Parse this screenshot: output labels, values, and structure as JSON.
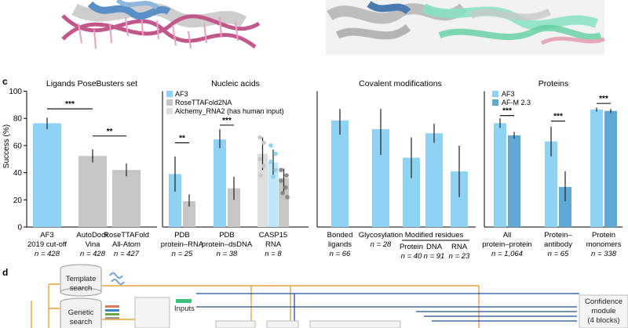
{
  "panel_labels": {
    "c": "c",
    "d": "d"
  },
  "y_axis": {
    "label": "Success (%)",
    "ticks": [
      "0",
      "20",
      "40",
      "60",
      "80",
      "100"
    ]
  },
  "colors": {
    "af3": "#8ed3f4",
    "af3_dark": "#5fa8d3",
    "baseline_gray": "#c6c6c6",
    "alchemy_gray": "#dedede",
    "human_input_light": "#bfe6f8",
    "arrow_orange": "#e9a23b",
    "arrow_blue": "#1f4e9a",
    "inputs_green": "#3cc17a",
    "dna_pink": "#c2578c",
    "protein_blue": "#5b8fc7",
    "protein_green": "#87e3c2"
  },
  "chart_data": [
    {
      "type": "bar",
      "title": "Ligands PoseBusters set",
      "ylabel": "Success (%)",
      "ylim": [
        0,
        100
      ],
      "categories": [
        {
          "lines": [
            "AF3",
            "2019 cut-off",
            "n = 428"
          ]
        },
        {
          "lines": [
            "AutoDock",
            "Vina",
            "n = 428"
          ]
        },
        {
          "lines": [
            "RoseTTAFold",
            "All-Atom",
            "n = 427"
          ]
        }
      ],
      "series": [
        {
          "values": [
            76.4,
            52.3,
            42.0
          ],
          "errors": [
            [
              72.0,
              80.5
            ],
            [
              47.5,
              57.2
            ],
            [
              37.3,
              46.8
            ]
          ],
          "colors": [
            "af3",
            "baseline_gray",
            "baseline_gray"
          ]
        }
      ],
      "significance": [
        {
          "label": "***"
        },
        {
          "label": "**"
        }
      ]
    },
    {
      "type": "bar",
      "title": "Nucleic acids",
      "ylabel": "Success (%)",
      "ylim": [
        0,
        100
      ],
      "legend": [
        "AF3",
        "RoseTTAFold2NA",
        "Alchemy_RNA2 (has human input)"
      ],
      "legend_placement": "top-left",
      "categories": [
        {
          "lines": [
            "PDB",
            "protein–RNA",
            "n = 25"
          ]
        },
        {
          "lines": [
            "PDB",
            "protein–dsDNA",
            "n = 38"
          ]
        },
        {
          "lines": [
            "CASP15",
            "RNA",
            "n = 8"
          ]
        }
      ],
      "series": [
        {
          "name": "AF3",
          "values": [
            39.0,
            64.5,
            47.5
          ]
        },
        {
          "name": "RoseTTAFold2NA",
          "values": [
            19.0,
            28.5,
            36.0
          ]
        },
        {
          "name": "Alchemy_RNA2 (has human input)",
          "values": [
            null,
            null,
            54.0
          ]
        }
      ],
      "significance": [
        {
          "label": "**"
        },
        {
          "label": "***"
        }
      ]
    },
    {
      "type": "bar",
      "title": "Covalent modifications",
      "ylabel": "Success (%)",
      "ylim": [
        0,
        100
      ],
      "categories": [
        {
          "lines": [
            "Bonded",
            "ligands",
            "n = 66"
          ]
        },
        {
          "lines": [
            "Glycosylation",
            "n = 28"
          ]
        },
        {
          "lines": [
            "Protein",
            "n = 40"
          ]
        },
        {
          "lines": [
            "DNA",
            "n = 91"
          ]
        },
        {
          "lines": [
            "RNA",
            "n = 23"
          ]
        }
      ],
      "group_label": "Modified residues",
      "series": [
        {
          "name": "AF3",
          "values": [
            78.5,
            72.0,
            51.0,
            69.0,
            41.0
          ]
        }
      ]
    },
    {
      "type": "bar",
      "title": "Proteins",
      "ylabel": "Success (%)",
      "ylim": [
        0,
        100
      ],
      "legend": [
        "AF3",
        "AF-M 2.3"
      ],
      "legend_placement": "top-left",
      "categories": [
        {
          "lines": [
            "All",
            "protein–protein",
            "n = 1,064"
          ]
        },
        {
          "lines": [
            "Protein–",
            "antibody",
            "n = 65"
          ]
        },
        {
          "lines": [
            "Protein",
            "monomers",
            "n = 338"
          ]
        }
      ],
      "series": [
        {
          "name": "AF3",
          "values": [
            76.5,
            63.0,
            86.5
          ]
        },
        {
          "name": "AF-M 2.3",
          "values": [
            67.5,
            29.5,
            85.5
          ]
        }
      ],
      "significance": [
        {
          "label": "***"
        },
        {
          "label": "***"
        },
        {
          "label": "***"
        }
      ]
    }
  ],
  "diagram": {
    "template_search": [
      "Template",
      "search"
    ],
    "genetic_search": [
      "Genetic",
      "search"
    ],
    "inputs": "Inputs",
    "confidence": [
      "Confidence",
      "module",
      "(4 blocks)"
    ]
  }
}
